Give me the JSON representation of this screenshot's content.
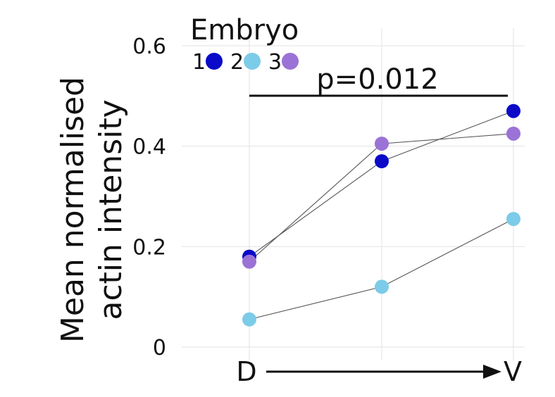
{
  "chart_data": {
    "type": "line",
    "ylabel_line1": "Mean normalised",
    "ylabel_line2": "actin intensity",
    "ylim": [
      0,
      0.6
    ],
    "yticks": [
      "0",
      "0.2",
      "0.4",
      "0.6"
    ],
    "ytick_values": [
      0,
      0.2,
      0.4,
      0.6
    ],
    "x_positions": [
      1,
      2,
      3
    ],
    "xaxis": {
      "start_label": "D",
      "end_label": "V"
    },
    "legend": {
      "title": "Embryo",
      "position": "top-left"
    },
    "grid": true,
    "series": [
      {
        "name": "1",
        "color": "#0a0ac8",
        "values": [
          0.18,
          0.37,
          0.47
        ]
      },
      {
        "name": "2",
        "color": "#7ccbe8",
        "values": [
          0.055,
          0.12,
          0.255
        ]
      },
      {
        "name": "3",
        "color": "#9b72d6",
        "values": [
          0.17,
          0.405,
          0.425
        ]
      }
    ],
    "annotation": {
      "text": "p=0.012",
      "from_x": 1,
      "to_x": 3
    }
  }
}
